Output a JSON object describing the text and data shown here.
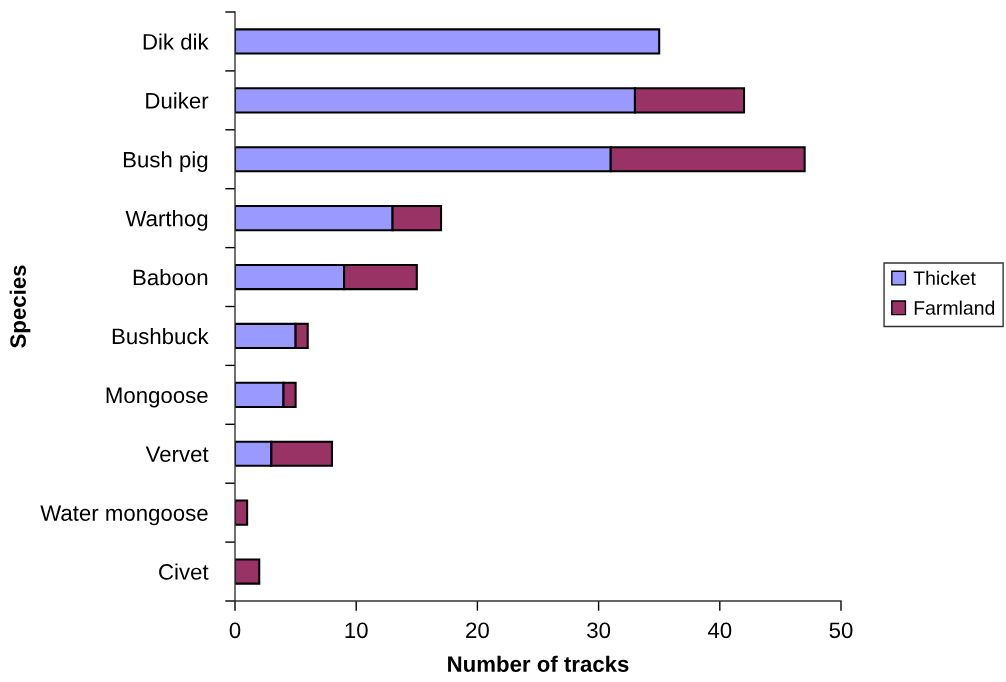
{
  "chart_data": {
    "type": "bar",
    "orientation": "horizontal",
    "stacked": true,
    "categories": [
      "Dik dik",
      "Duiker",
      "Bush pig",
      "Warthog",
      "Baboon",
      "Bushbuck",
      "Mongoose",
      "Vervet",
      "Water mongoose",
      "Civet"
    ],
    "series": [
      {
        "name": "Thicket",
        "color": "#9999ff",
        "values": [
          35,
          33,
          31,
          13,
          9,
          5,
          4,
          3,
          null,
          null
        ]
      },
      {
        "name": "Farmland",
        "color": "#993366",
        "values": [
          null,
          9,
          16,
          4,
          6,
          1,
          1,
          5,
          1,
          2
        ]
      }
    ],
    "xlabel": "Number of tracks",
    "ylabel": "Species",
    "xlim": [
      0,
      50
    ],
    "xticks": [
      0,
      10,
      20,
      30,
      40,
      50
    ],
    "grid": false,
    "legend": "right"
  }
}
